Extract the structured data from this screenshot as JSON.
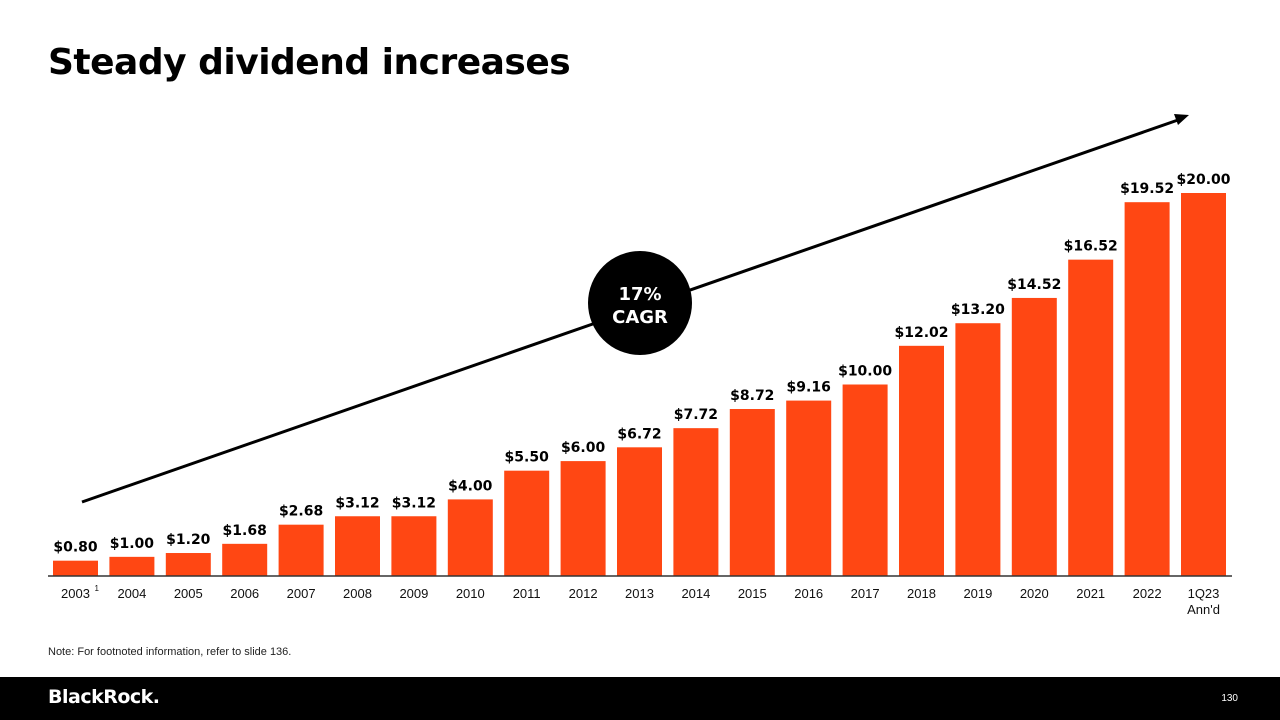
{
  "title": "Steady dividend increases",
  "note": "Note: For footnoted information, refer to slide 136.",
  "footer": {
    "logo": "BlackRock.",
    "page_number": "130"
  },
  "colors": {
    "bar": "#FF4713",
    "text": "#000000",
    "footer_bg": "#000000"
  },
  "chart_data": {
    "type": "bar",
    "title": "Steady dividend increases",
    "xlabel": "",
    "ylabel": "",
    "ylim": [
      0,
      20
    ],
    "grid": false,
    "categories": [
      "2003",
      "2004",
      "2005",
      "2006",
      "2007",
      "2008",
      "2009",
      "2010",
      "2011",
      "2012",
      "2013",
      "2014",
      "2015",
      "2016",
      "2017",
      "2018",
      "2019",
      "2020",
      "2021",
      "2022",
      "1Q23 Ann'd"
    ],
    "category_superscripts": {
      "0": "1"
    },
    "values": [
      0.8,
      1.0,
      1.2,
      1.68,
      2.68,
      3.12,
      3.12,
      4.0,
      5.5,
      6.0,
      6.72,
      7.72,
      8.72,
      9.16,
      10.0,
      12.02,
      13.2,
      14.52,
      16.52,
      19.52,
      20.0
    ],
    "data_labels": [
      "$0.80",
      "$1.00",
      "$1.20",
      "$1.68",
      "$2.68",
      "$3.12",
      "$3.12",
      "$4.00",
      "$5.50",
      "$6.00",
      "$6.72",
      "$7.72",
      "$8.72",
      "$9.16",
      "$10.00",
      "$12.02",
      "$13.20",
      "$14.52",
      "$16.52",
      "$19.52",
      "$20.00"
    ],
    "annotation": {
      "line1": "17%",
      "line2": "CAGR",
      "type": "trend-arrow"
    }
  }
}
